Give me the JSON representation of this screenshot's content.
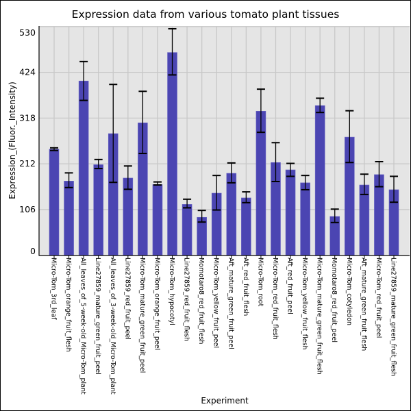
{
  "chart_data": {
    "type": "bar",
    "title": "Expression data from various tomato plant tissues",
    "xlabel": "Experiment",
    "ylabel": "Expression_(Fluor._Intensity)",
    "ylim": [
      0,
      531
    ],
    "yticks": [
      0,
      106,
      212,
      318,
      424,
      530
    ],
    "grid": true,
    "bar_color": "#4b45b2",
    "background_color": "#e5e5e5",
    "categories": [
      "Micro-Tom_3rd_leaf",
      "Micro-Tom_orange_fruit_flesh",
      "All_leaves_of_5-week-old_Micro-Tom_plant",
      "Line27859_mature_green_fruit_peel",
      "All_leaves_of_3-week-old_Micro-Tom_plant",
      "Line27859_red_fruit_peel",
      "Micro-Tom_mature_green_fruit_peel",
      "Micro-Tom_orange_fruit_peel",
      "Micro-Tom_hypocotyl",
      "Line27859_red_fruit_flesh",
      "Momotaro8_red_fruit_flesh",
      "Micro-Tom_yellow_fruit_peel",
      "Aft_mature_green_fruit_peel",
      "Aft_red_fruit_flesh",
      "Micro-Tom_root",
      "Micro-Tom_red_fruit_flesh",
      "Aft_red_fruit_peel",
      "Micro-Tom_yellow_fruit_flesh",
      "Micro-Tom_mature_green_fruit_flesh",
      "Momotaro8_red_fruit_peel",
      "Micro-Tom_cotyledon",
      "Aft_mature_green_fruit_flesh",
      "Micro-Tom_red_fruit_peel",
      "Line27859_mature_green_fruit_flesh"
    ],
    "values": [
      246,
      172,
      404,
      210,
      282,
      179,
      307,
      164,
      470,
      118,
      88,
      144,
      190,
      133,
      334,
      215,
      198,
      168,
      347,
      90,
      274,
      163,
      187,
      152
    ],
    "error_low": [
      243,
      157,
      359,
      201,
      169,
      153,
      236,
      163,
      418,
      110,
      77,
      105,
      168,
      122,
      285,
      171,
      183,
      152,
      331,
      76,
      215,
      141,
      159,
      123
    ],
    "error_high": [
      249,
      191,
      449,
      222,
      396,
      207,
      380,
      170,
      525,
      130,
      104,
      185,
      214,
      147,
      385,
      261,
      213,
      185,
      364,
      107,
      335,
      188,
      217,
      183
    ]
  }
}
